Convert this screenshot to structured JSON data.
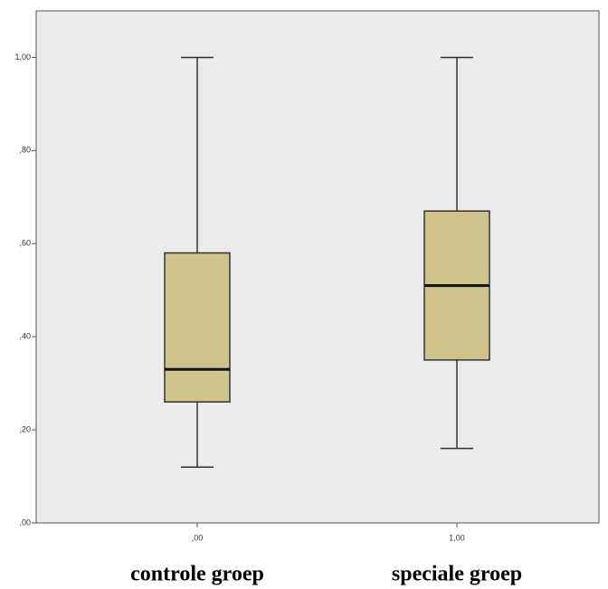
{
  "chart_data": {
    "type": "boxplot",
    "categories": [
      ",00",
      "1,00"
    ],
    "group_labels": [
      "controle groep",
      "speciale groep"
    ],
    "series": [
      {
        "min": 0.12,
        "q1": 0.26,
        "median": 0.33,
        "q3": 0.58,
        "max": 1.0
      },
      {
        "min": 0.16,
        "q1": 0.35,
        "median": 0.51,
        "q3": 0.67,
        "max": 1.0
      }
    ],
    "color": "#cfc38c",
    "ylim": [
      0,
      1.1
    ],
    "yticks": [
      {
        "value": 0,
        "label": ",00"
      },
      {
        "value": 0.2,
        "label": ",20"
      },
      {
        "value": 0.4,
        "label": ",40"
      },
      {
        "value": 0.6,
        "label": ",60"
      },
      {
        "value": 0.8,
        "label": ",80"
      },
      {
        "value": 1,
        "label": "1,00"
      }
    ]
  }
}
